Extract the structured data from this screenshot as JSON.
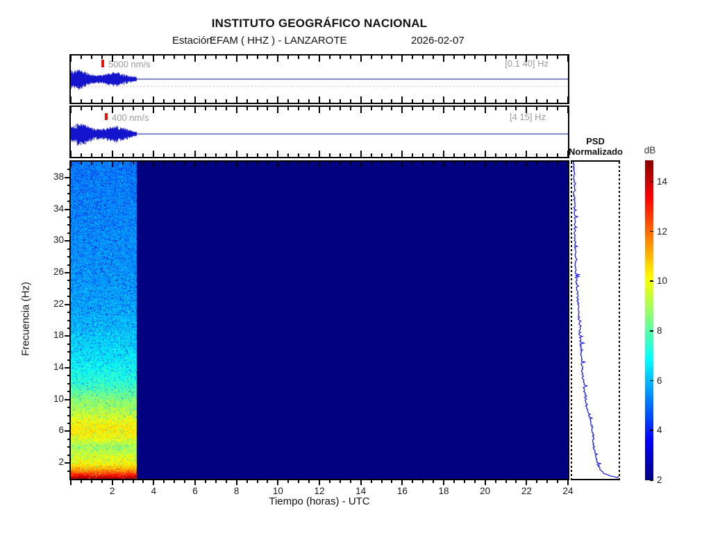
{
  "header": {
    "title": "INSTITUTO GEOGRÁFICO NACIONAL",
    "station_prefix": "Estación:",
    "station_value": "EFAM ( HHZ ) - LANZAROTE",
    "date": "2026-02-07"
  },
  "strips": [
    {
      "scale_label": "5000 nm/s",
      "band_label": "[0.1 40] Hz"
    },
    {
      "scale_label": "400 nm/s",
      "band_label": "[4 15] Hz"
    }
  ],
  "axes": {
    "x_label": "Tiempo (horas) - UTC",
    "y_label": "Frecuencia  (Hz)",
    "x_tick_labels": [
      "2",
      "4",
      "6",
      "8",
      "10",
      "12",
      "14",
      "16",
      "18",
      "20",
      "22",
      "24"
    ],
    "y_tick_labels": [
      "2",
      "6",
      "10",
      "14",
      "18",
      "22",
      "26",
      "30",
      "34",
      "38"
    ]
  },
  "psd_panel": {
    "title_line1": "PSD",
    "title_line2": "Normalizado"
  },
  "colorbar": {
    "label": "dB",
    "tick_labels": [
      "14",
      "12",
      "10",
      "8",
      "6",
      "4",
      "2"
    ]
  },
  "colors": {
    "no_data": "#000080",
    "waveform": "#1414cc",
    "flat_line": "#00008f",
    "psd_curve": "#1414dd",
    "scale_bar": "#e8150d",
    "muted_text": "#999999"
  },
  "chart_data": {
    "type": "heatmap",
    "title": "INSTITUTO GEOGRÁFICO NACIONAL",
    "subtitle": "Estación: EFAM ( HHZ ) - LANZAROTE  2026-02-07",
    "xlabel": "Tiempo (horas) - UTC",
    "ylabel": "Frecuencia (Hz)",
    "x_range_hours": [
      0,
      24
    ],
    "x_major_tick_step": 2,
    "x_minor_tick_step": 0.5,
    "y_range_hz": [
      0,
      40
    ],
    "y_major_tick_step": 4,
    "y_minor_tick_step": 1,
    "colormap": "jet",
    "colorbar_label": "dB",
    "colorbar_ticks": [
      2,
      4,
      6,
      8,
      10,
      12,
      14
    ],
    "color_range_db": [
      2,
      14.86
    ],
    "data_present_hours": [
      0,
      3.2
    ],
    "no_data_value_db": 2,
    "noise_sigma_db": 0.85,
    "spectral_profile_db_by_freq": [
      [
        0,
        14.6
      ],
      [
        0.2,
        14.2
      ],
      [
        0.4,
        13.4
      ],
      [
        0.7,
        12.4
      ],
      [
        1,
        11.7
      ],
      [
        1.3,
        11.1
      ],
      [
        1.6,
        10.6
      ],
      [
        2,
        10.1
      ],
      [
        2.5,
        9.8
      ],
      [
        3,
        9.6
      ],
      [
        3.5,
        9.2
      ],
      [
        4,
        8.9
      ],
      [
        4.5,
        9.3
      ],
      [
        5,
        9.9
      ],
      [
        5.5,
        10.2
      ],
      [
        6,
        10.3
      ],
      [
        6.5,
        10.3
      ],
      [
        7,
        10.1
      ],
      [
        7.5,
        9.8
      ],
      [
        8,
        9.5
      ],
      [
        8.5,
        9.2
      ],
      [
        9,
        9.0
      ],
      [
        9.5,
        8.8
      ],
      [
        10,
        8.6
      ],
      [
        10.5,
        8.3
      ],
      [
        11,
        8.0
      ],
      [
        11.5,
        7.7
      ],
      [
        12,
        7.5
      ],
      [
        12.5,
        7.3
      ],
      [
        13,
        7.2
      ],
      [
        14,
        6.9
      ],
      [
        15,
        6.7
      ],
      [
        16,
        6.5
      ],
      [
        17,
        6.3
      ],
      [
        18,
        6.2
      ],
      [
        19,
        6.0
      ],
      [
        20,
        5.9
      ],
      [
        21,
        5.8
      ],
      [
        22,
        5.7
      ],
      [
        23,
        5.65
      ],
      [
        24,
        5.6
      ],
      [
        26,
        5.5
      ],
      [
        28,
        5.45
      ],
      [
        30,
        5.4
      ],
      [
        32,
        5.35
      ],
      [
        34,
        5.3
      ],
      [
        36,
        5.25
      ],
      [
        38,
        5.2
      ],
      [
        40,
        5.15
      ]
    ],
    "psd_curve_norm_by_freq": [
      [
        40,
        0.02
      ],
      [
        38,
        0.03
      ],
      [
        36,
        0.03
      ],
      [
        34,
        0.04
      ],
      [
        32,
        0.04
      ],
      [
        30,
        0.05
      ],
      [
        28,
        0.06
      ],
      [
        26,
        0.07
      ],
      [
        24,
        0.09
      ],
      [
        22,
        0.12
      ],
      [
        20,
        0.14
      ],
      [
        18,
        0.16
      ],
      [
        16,
        0.19
      ],
      [
        14,
        0.21
      ],
      [
        13,
        0.22
      ],
      [
        12,
        0.24
      ],
      [
        11,
        0.26
      ],
      [
        10,
        0.28
      ],
      [
        9,
        0.31
      ],
      [
        8,
        0.35
      ],
      [
        7,
        0.4
      ],
      [
        6.5,
        0.43
      ],
      [
        6,
        0.45
      ],
      [
        5.5,
        0.46
      ],
      [
        5,
        0.465
      ],
      [
        4.5,
        0.465
      ],
      [
        4,
        0.47
      ],
      [
        3.5,
        0.48
      ],
      [
        3,
        0.5
      ],
      [
        2.5,
        0.52
      ],
      [
        2,
        0.55
      ],
      [
        1.5,
        0.58
      ],
      [
        1.2,
        0.61
      ],
      [
        0.9,
        0.64
      ],
      [
        0.6,
        0.7
      ],
      [
        0.4,
        0.78
      ],
      [
        0.25,
        0.88
      ],
      [
        0.1,
        0.97
      ],
      [
        0.02,
        1.0
      ]
    ],
    "waveforms": [
      {
        "band": "[0.1 40] Hz",
        "scale": "5000 nm/s",
        "signal_hours": [
          0,
          3.2
        ],
        "flat_after": true
      },
      {
        "band": "[4 15] Hz",
        "scale": "400 nm/s",
        "signal_hours": [
          0,
          3.2
        ],
        "flat_after": true
      }
    ]
  }
}
